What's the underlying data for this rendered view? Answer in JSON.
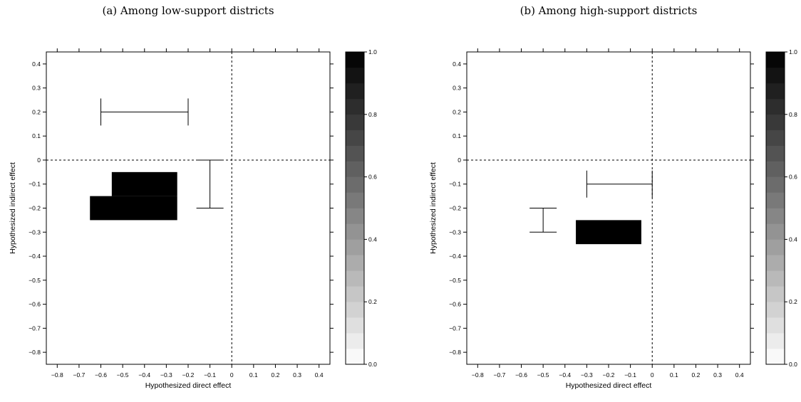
{
  "chart_data": [
    {
      "type": "heatmap",
      "title": "(a) Among low-support districts",
      "xlabel": "Hypothesized direct effect",
      "ylabel": "Hypothesized indirect effect",
      "xlim": [
        -0.85,
        0.45
      ],
      "ylim": [
        -0.85,
        0.45
      ],
      "x_ticks": [
        "−0.8",
        "−0.7",
        "−0.6",
        "−0.5",
        "−0.4",
        "−0.3",
        "−0.2",
        "−0.1",
        "0",
        "0.1",
        "0.2",
        "0.3",
        "0.4"
      ],
      "y_ticks": [
        "0.4",
        "0.3",
        "0.2",
        "0.1",
        "0",
        "−0.1",
        "−0.2",
        "−0.3",
        "−0.4",
        "−0.5",
        "−0.6",
        "−0.7",
        "−0.8"
      ],
      "colorbar": {
        "range": [
          0,
          1
        ],
        "tick_labels": [
          "0.0",
          "0.2",
          "0.4",
          "0.6",
          "0.8",
          "1.0"
        ],
        "colormap": "white-to-black"
      },
      "filled_cells": [
        {
          "x": [
            -0.55,
            -0.25
          ],
          "y": [
            -0.15,
            -0.05
          ],
          "value": 1.0
        },
        {
          "x": [
            -0.65,
            -0.25
          ],
          "y": [
            -0.25,
            -0.15
          ],
          "value": 1.0
        }
      ],
      "intervals": [
        {
          "orientation": "horizontal",
          "at": 0.2,
          "from": -0.6,
          "to": -0.2
        },
        {
          "orientation": "vertical",
          "at": -0.1,
          "from": -0.2,
          "to": 0.0
        }
      ],
      "reference_lines": {
        "x": 0,
        "y": 0
      }
    },
    {
      "type": "heatmap",
      "title": "(b) Among high-support districts",
      "xlabel": "Hypothesized direct effect",
      "ylabel": "Hypothesized indirect effect",
      "xlim": [
        -0.85,
        0.45
      ],
      "ylim": [
        -0.85,
        0.45
      ],
      "x_ticks": [
        "−0.8",
        "−0.7",
        "−0.6",
        "−0.5",
        "−0.4",
        "−0.3",
        "−0.2",
        "−0.1",
        "0",
        "0.1",
        "0.2",
        "0.3",
        "0.4"
      ],
      "y_ticks": [
        "0.4",
        "0.3",
        "0.2",
        "0.1",
        "0",
        "−0.1",
        "−0.2",
        "−0.3",
        "−0.4",
        "−0.5",
        "−0.6",
        "−0.7",
        "−0.8"
      ],
      "colorbar": {
        "range": [
          0,
          1
        ],
        "tick_labels": [
          "0.0",
          "0.2",
          "0.4",
          "0.6",
          "0.8",
          "1.0"
        ],
        "colormap": "white-to-black"
      },
      "filled_cells": [
        {
          "x": [
            -0.35,
            -0.05
          ],
          "y": [
            -0.35,
            -0.25
          ],
          "value": 1.0
        }
      ],
      "intervals": [
        {
          "orientation": "horizontal",
          "at": -0.1,
          "from": -0.3,
          "to": 0.0
        },
        {
          "orientation": "vertical",
          "at": -0.5,
          "from": -0.3,
          "to": -0.2
        }
      ],
      "reference_lines": {
        "x": 0,
        "y": 0
      }
    }
  ]
}
